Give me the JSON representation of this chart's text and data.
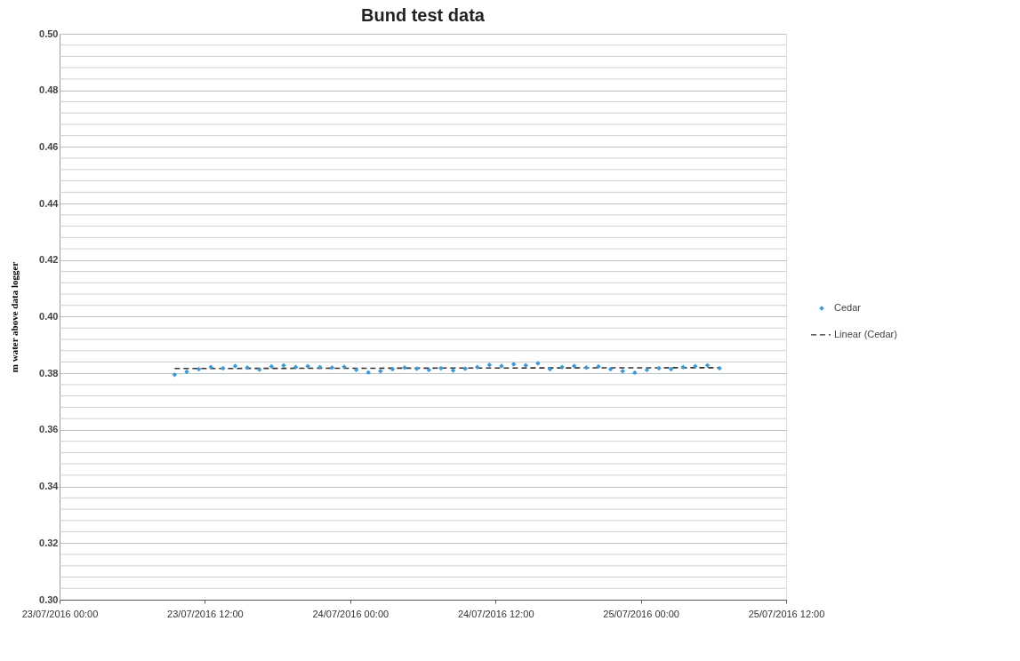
{
  "chart_data": {
    "type": "scatter",
    "title": "Bund test data",
    "ylabel": "m water  above data logger",
    "xlim": [
      "2016-07-23T00:00",
      "2016-07-25T12:00"
    ],
    "xticks": [
      {
        "value": "2016-07-23T00:00",
        "label": "23/07/2016  00:00"
      },
      {
        "value": "2016-07-23T12:00",
        "label": "23/07/2016  12:00"
      },
      {
        "value": "2016-07-24T00:00",
        "label": "24/07/2016  00:00"
      },
      {
        "value": "2016-07-24T12:00",
        "label": "24/07/2016  12:00"
      },
      {
        "value": "2016-07-25T00:00",
        "label": "25/07/2016  00:00"
      },
      {
        "value": "2016-07-25T12:00",
        "label": "25/07/2016  12:00"
      }
    ],
    "ylim": [
      0.3,
      0.5
    ],
    "yticks": [
      {
        "value": 0.3,
        "label": "0.30"
      },
      {
        "value": 0.304,
        "label": null
      },
      {
        "value": 0.308,
        "label": null
      },
      {
        "value": 0.312,
        "label": null
      },
      {
        "value": 0.316,
        "label": null
      },
      {
        "value": 0.32,
        "label": "0.32"
      },
      {
        "value": 0.324,
        "label": null
      },
      {
        "value": 0.328,
        "label": null
      },
      {
        "value": 0.332,
        "label": null
      },
      {
        "value": 0.336,
        "label": null
      },
      {
        "value": 0.34,
        "label": "0.34"
      },
      {
        "value": 0.344,
        "label": null
      },
      {
        "value": 0.348,
        "label": null
      },
      {
        "value": 0.352,
        "label": null
      },
      {
        "value": 0.356,
        "label": null
      },
      {
        "value": 0.36,
        "label": "0.36"
      },
      {
        "value": 0.364,
        "label": null
      },
      {
        "value": 0.368,
        "label": null
      },
      {
        "value": 0.372,
        "label": null
      },
      {
        "value": 0.376,
        "label": null
      },
      {
        "value": 0.38,
        "label": "0.38"
      },
      {
        "value": 0.384,
        "label": null
      },
      {
        "value": 0.388,
        "label": null
      },
      {
        "value": 0.392,
        "label": null
      },
      {
        "value": 0.396,
        "label": null
      },
      {
        "value": 0.4,
        "label": "0.40"
      },
      {
        "value": 0.404,
        "label": null
      },
      {
        "value": 0.408,
        "label": null
      },
      {
        "value": 0.412,
        "label": null
      },
      {
        "value": 0.416,
        "label": null
      },
      {
        "value": 0.42,
        "label": "0.42"
      },
      {
        "value": 0.424,
        "label": null
      },
      {
        "value": 0.428,
        "label": null
      },
      {
        "value": 0.432,
        "label": null
      },
      {
        "value": 0.436,
        "label": null
      },
      {
        "value": 0.44,
        "label": "0.44"
      },
      {
        "value": 0.444,
        "label": null
      },
      {
        "value": 0.448,
        "label": null
      },
      {
        "value": 0.452,
        "label": null
      },
      {
        "value": 0.456,
        "label": null
      },
      {
        "value": 0.46,
        "label": "0.46"
      },
      {
        "value": 0.464,
        "label": null
      },
      {
        "value": 0.468,
        "label": null
      },
      {
        "value": 0.472,
        "label": null
      },
      {
        "value": 0.476,
        "label": null
      },
      {
        "value": 0.48,
        "label": "0.48"
      },
      {
        "value": 0.484,
        "label": null
      },
      {
        "value": 0.488,
        "label": null
      },
      {
        "value": 0.492,
        "label": null
      },
      {
        "value": 0.496,
        "label": null
      },
      {
        "value": 0.5,
        "label": "0.50"
      }
    ],
    "grid": "y",
    "legend": "right",
    "marker": "diamond",
    "series": [
      {
        "name": "Cedar",
        "color": "#3d9ad6",
        "x": [
          "2016-07-23T09:30",
          "2016-07-23T10:30",
          "2016-07-23T11:30",
          "2016-07-23T12:30",
          "2016-07-23T13:30",
          "2016-07-23T14:30",
          "2016-07-23T15:30",
          "2016-07-23T16:30",
          "2016-07-23T17:30",
          "2016-07-23T18:30",
          "2016-07-23T19:30",
          "2016-07-23T20:30",
          "2016-07-23T21:30",
          "2016-07-23T22:30",
          "2016-07-23T23:30",
          "2016-07-24T00:30",
          "2016-07-24T01:30",
          "2016-07-24T02:30",
          "2016-07-24T03:30",
          "2016-07-24T04:30",
          "2016-07-24T05:30",
          "2016-07-24T06:30",
          "2016-07-24T07:30",
          "2016-07-24T08:30",
          "2016-07-24T09:30",
          "2016-07-24T10:30",
          "2016-07-24T11:30",
          "2016-07-24T12:30",
          "2016-07-24T13:30",
          "2016-07-24T14:30",
          "2016-07-24T15:30",
          "2016-07-24T16:30",
          "2016-07-24T17:30",
          "2016-07-24T18:30",
          "2016-07-24T19:30",
          "2016-07-24T20:30",
          "2016-07-24T21:30",
          "2016-07-24T22:30",
          "2016-07-24T23:30",
          "2016-07-25T00:30",
          "2016-07-25T01:30",
          "2016-07-25T02:30",
          "2016-07-25T03:30",
          "2016-07-25T04:30",
          "2016-07-25T05:30",
          "2016-07-25T06:30"
        ],
        "values": [
          0.3795,
          0.3805,
          0.3815,
          0.3822,
          0.3818,
          0.3826,
          0.382,
          0.3813,
          0.3824,
          0.3828,
          0.3822,
          0.3825,
          0.3822,
          0.382,
          0.3823,
          0.3812,
          0.3803,
          0.3808,
          0.3815,
          0.382,
          0.3816,
          0.3812,
          0.3818,
          0.381,
          0.3816,
          0.3822,
          0.383,
          0.3826,
          0.3832,
          0.3828,
          0.3835,
          0.3815,
          0.3822,
          0.3826,
          0.382,
          0.3824,
          0.3815,
          0.3808,
          0.3802,
          0.3812,
          0.3818,
          0.3815,
          0.3822,
          0.3825,
          0.3828,
          0.3818
        ]
      },
      {
        "name": "Linear (Cedar)",
        "type": "line",
        "marker": "none",
        "line_style": "dashed",
        "color": "#3b2f2f",
        "x": [
          "2016-07-23T09:30",
          "2016-07-25T06:30"
        ],
        "values": [
          0.3817,
          0.382
        ]
      }
    ]
  }
}
